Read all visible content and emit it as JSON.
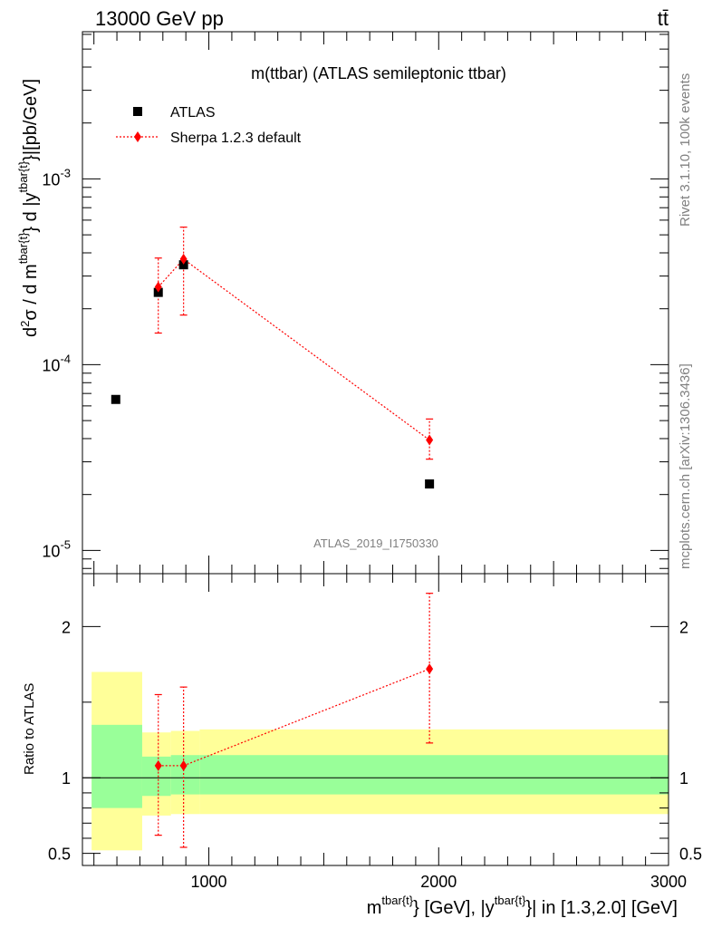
{
  "header": {
    "left": "13000 GeV pp",
    "right": "tt̄"
  },
  "plot_title": "m(ttbar) (ATLAS semileptonic ttbar)",
  "watermark": "ATLAS_2019_I1750330",
  "side_labels": {
    "rivet": "Rivet 3.1.10,  100k events",
    "mcplots": "mcplots.cern.ch [arXiv:1306.3436]"
  },
  "legend": {
    "atlas": "ATLAS",
    "sherpa": "Sherpa 1.2.3 default"
  },
  "ylabel_main": "d²σ / d m^{tbar{t}} d |y^{tbar{t}}|[pb/GeV]",
  "ylabel_ratio": "Ratio to ATLAS",
  "xlabel": "m^{tbar{t}} [GeV], |y^{tbar{t}}| in [1.3,2.0] [GeV]",
  "colors": {
    "data": "#000000",
    "mc": "#ff0000",
    "band_inner": "#99ff99",
    "band_outer": "#ffff99"
  },
  "chart_data": [
    {
      "type": "scatter",
      "panel": "main",
      "yscale": "log",
      "xlim": [
        450,
        3000
      ],
      "ylim": [
        7.5e-06,
        0.0062
      ],
      "yticks": [
        {
          "value": 1e-05,
          "label": "10^-5"
        },
        {
          "value": 0.0001,
          "label": "10^-4"
        },
        {
          "value": 0.001,
          "label": "10^-3"
        }
      ],
      "series": [
        {
          "name": "ATLAS",
          "points": [
            {
              "x": 595,
              "y": 6.5e-05
            },
            {
              "x": 780,
              "y": 0.000245
            },
            {
              "x": 890,
              "y": 0.000345
            },
            {
              "x": 1960,
              "y": 2.28e-05
            }
          ]
        },
        {
          "name": "Sherpa 1.2.3 default",
          "points": [
            {
              "x": 780,
              "y": 0.000262,
              "ylo": 0.000148,
              "yhi": 0.000375
            },
            {
              "x": 890,
              "y": 0.00037,
              "ylo": 0.000185,
              "yhi": 0.00055
            },
            {
              "x": 1960,
              "y": 3.93e-05,
              "ylo": 3.1e-05,
              "yhi": 5.1e-05
            }
          ]
        }
      ]
    },
    {
      "type": "line",
      "panel": "ratio",
      "ylabel": "Ratio to ATLAS",
      "xlim": [
        450,
        3000
      ],
      "ylim": [
        0.42,
        2.35
      ],
      "xticks": [
        1000,
        2000,
        3000
      ],
      "yticks": [
        0.5,
        1,
        2
      ],
      "bands": [
        {
          "x0": 490,
          "x1": 710,
          "inner": [
            0.8,
            1.35
          ],
          "outer": [
            0.52,
            1.7
          ]
        },
        {
          "x0": 710,
          "x1": 835,
          "inner": [
            0.88,
            1.14
          ],
          "outer": [
            0.75,
            1.3
          ]
        },
        {
          "x0": 835,
          "x1": 960,
          "inner": [
            0.89,
            1.15
          ],
          "outer": [
            0.76,
            1.31
          ]
        },
        {
          "x0": 960,
          "x1": 3000,
          "inner": [
            0.89,
            1.15
          ],
          "outer": [
            0.76,
            1.32
          ]
        }
      ],
      "series": [
        {
          "name": "Sherpa 1.2.3 default",
          "points": [
            {
              "x": 780,
              "y": 1.08,
              "ylo": 0.62,
              "yhi": 1.55
            },
            {
              "x": 890,
              "y": 1.08,
              "ylo": 0.54,
              "yhi": 1.6
            },
            {
              "x": 1960,
              "y": 1.72,
              "ylo": 1.23,
              "yhi": 2.22
            }
          ]
        }
      ]
    }
  ]
}
